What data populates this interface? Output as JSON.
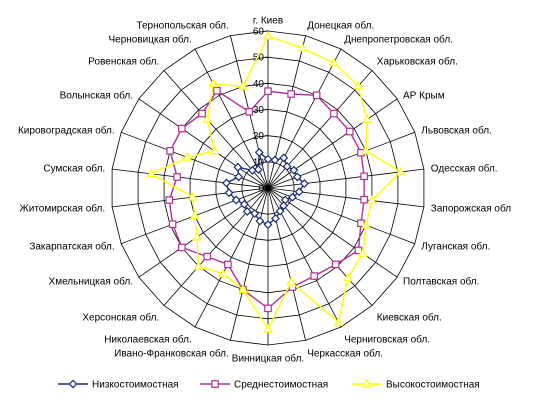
{
  "chart_data": {
    "type": "radar",
    "categories": [
      "г. Киев",
      "Донецкая обл.",
      "Днепропетровская обл.",
      "Харьковская обл.",
      "АР Крым",
      "Львовская обл.",
      "Одесская обл.",
      "Запорожская обл",
      "Луганская обл.",
      "Полтавская обл.",
      "Киевская обл.",
      "Черниговская обл.",
      "Черкасская обл.",
      "Винницкая обл.",
      "Ивано-Франковская обл.",
      "Николаевская обл.",
      "Херсонская обл.",
      "Хмельницкая обл.",
      "Закарпатская обл.",
      "Житомирская обл.",
      "Сумская обл.",
      "Кировоградская обл.",
      "Волынская обл.",
      "Ровенская обл.",
      "Черновицкая обл.",
      "Тернопольская обл."
    ],
    "rlim": [
      0,
      60
    ],
    "ticks": [
      0,
      10,
      20,
      30,
      40,
      50,
      60
    ],
    "tick_labels": [
      "0",
      "10",
      "20",
      "30",
      "40",
      "50",
      "60"
    ],
    "grid": true,
    "legend_position": "bottom",
    "series": [
      {
        "name": "Низкостоимостная",
        "color": "#1a2a7a",
        "marker": "diamond",
        "values": [
          11,
          11,
          13,
          11,
          12,
          12,
          14,
          12,
          10,
          8,
          9,
          10,
          12,
          14,
          13,
          11,
          12,
          11,
          13,
          15,
          16,
          12,
          14,
          9,
          8,
          14
        ]
      },
      {
        "name": "Среднестоимостная",
        "color": "#b0309a",
        "marker": "square",
        "values": [
          37,
          37,
          40,
          38,
          38,
          38,
          37,
          37,
          38,
          42,
          39,
          38,
          39,
          46,
          40,
          33,
          35,
          40,
          39,
          38,
          35,
          40,
          40,
          38,
          42,
          30
        ]
      },
      {
        "name": "Высокостоимостная",
        "color": "#ffff00",
        "marker": "triangle",
        "values": [
          58,
          55,
          54,
          52,
          46,
          40,
          51,
          40,
          40,
          44,
          46,
          58,
          37,
          54,
          40,
          37,
          40,
          33,
          30,
          29,
          45,
          33,
          25,
          35,
          45,
          40
        ]
      }
    ]
  }
}
